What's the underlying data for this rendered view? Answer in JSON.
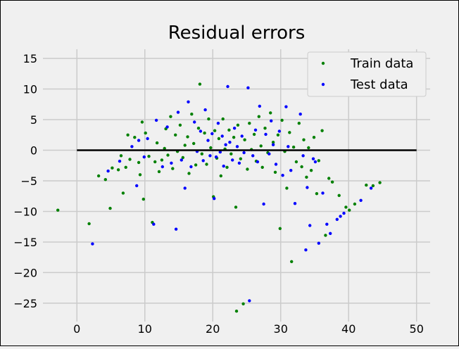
{
  "chart_data": {
    "type": "scatter",
    "title": "Residual errors",
    "xlabel": "",
    "ylabel": "",
    "xlim": [
      -5,
      52
    ],
    "ylim": [
      -28,
      16.5
    ],
    "xticks": [
      0,
      10,
      20,
      30,
      40,
      50
    ],
    "yticks": [
      -25,
      -20,
      -15,
      -10,
      -5,
      0,
      5,
      10,
      15
    ],
    "grid": true,
    "hline": {
      "y": 0,
      "xmin": 0,
      "xmax": 50,
      "color": "#000000"
    },
    "legend": {
      "position": "top-right",
      "entries": [
        "Train data",
        "Test data"
      ]
    },
    "series": [
      {
        "name": "Train data",
        "color": "#008000",
        "points": [
          [
            -2.8,
            -9.8
          ],
          [
            1.8,
            -12
          ],
          [
            3.2,
            -4.2
          ],
          [
            4.2,
            -4.8
          ],
          [
            4.9,
            -9.5
          ],
          [
            5.2,
            -2.9
          ],
          [
            6.1,
            -3.2
          ],
          [
            6.5,
            -0.9
          ],
          [
            6.8,
            -7
          ],
          [
            7.2,
            -2.8
          ],
          [
            7.5,
            2.5
          ],
          [
            7.8,
            -1.5
          ],
          [
            8.5,
            2.1
          ],
          [
            9.1,
            -2
          ],
          [
            9.3,
            -4
          ],
          [
            9.6,
            4.6
          ],
          [
            9.8,
            -8
          ],
          [
            10.1,
            2.8
          ],
          [
            10.6,
            -1
          ],
          [
            11.1,
            -11.8
          ],
          [
            11.5,
            -1.9
          ],
          [
            11.8,
            1.2
          ],
          [
            12.1,
            -3.5
          ],
          [
            12.5,
            -1.6
          ],
          [
            12.9,
            0.3
          ],
          [
            13.1,
            3.5
          ],
          [
            13.4,
            -0.8
          ],
          [
            13.8,
            5.5
          ],
          [
            14.1,
            -3
          ],
          [
            14.5,
            2.5
          ],
          [
            14.8,
            -0.2
          ],
          [
            15.2,
            4.1
          ],
          [
            15.6,
            -1.2
          ],
          [
            15.9,
            0.8
          ],
          [
            16.3,
            2.2
          ],
          [
            16.5,
            -3.8
          ],
          [
            16.9,
            5.9
          ],
          [
            17.2,
            1.1
          ],
          [
            17.5,
            -2.4
          ],
          [
            17.9,
            3.6
          ],
          [
            18.1,
            10.8
          ],
          [
            18.4,
            -0.6
          ],
          [
            18.8,
            2.8
          ],
          [
            19.1,
            -2.3
          ],
          [
            19.4,
            5.1
          ],
          [
            19.7,
            0.4
          ],
          [
            20.1,
            -7.6
          ],
          [
            20.3,
            3.2
          ],
          [
            20.6,
            -1.3
          ],
          [
            20.9,
            1.9
          ],
          [
            21.2,
            -4.2
          ],
          [
            21.5,
            5.1
          ],
          [
            21.8,
            0.2
          ],
          [
            22.1,
            -2.8
          ],
          [
            22.4,
            3.3
          ],
          [
            22.7,
            -0.6
          ],
          [
            23.1,
            2.1
          ],
          [
            23.4,
            -9.3
          ],
          [
            23.7,
            4.1
          ],
          [
            24.1,
            -1.4
          ],
          [
            23.5,
            -26.3
          ],
          [
            24.5,
            -25.1
          ],
          [
            24.7,
            1.7
          ],
          [
            25.1,
            -3.1
          ],
          [
            25.4,
            4.4
          ],
          [
            25.7,
            0.1
          ],
          [
            26.1,
            2.6
          ],
          [
            26.4,
            -1.8
          ],
          [
            26.8,
            5.5
          ],
          [
            27.1,
            0.7
          ],
          [
            27.3,
            -2.8
          ],
          [
            27.7,
            3.6
          ],
          [
            28.1,
            -0.4
          ],
          [
            28.5,
            6.1
          ],
          [
            28.9,
            1.3
          ],
          [
            29.2,
            -3.6
          ],
          [
            29.6,
            2.5
          ],
          [
            29.9,
            -12.8
          ],
          [
            30.2,
            4.9
          ],
          [
            30.6,
            -0.2
          ],
          [
            30.9,
            -6.2
          ],
          [
            31.3,
            2.9
          ],
          [
            31.6,
            -18.2
          ],
          [
            31.9,
            0.5
          ],
          [
            32.3,
            -1.9
          ],
          [
            32.7,
            4.4
          ],
          [
            33.1,
            -2.7
          ],
          [
            33.4,
            1.7
          ],
          [
            33.8,
            -4.4
          ],
          [
            34.1,
            0.4
          ],
          [
            34.5,
            -3.3
          ],
          [
            34.9,
            2.1
          ],
          [
            35.3,
            -7.1
          ],
          [
            35.6,
            -1.7
          ],
          [
            36.1,
            3.2
          ],
          [
            36.6,
            -13.9
          ],
          [
            37.1,
            -4.6
          ],
          [
            37.6,
            -5.2
          ],
          [
            38.6,
            -7.4
          ],
          [
            39.6,
            -9.3
          ],
          [
            40.1,
            -9.8
          ],
          [
            40.9,
            -8.8
          ],
          [
            42.6,
            -5.7
          ],
          [
            43.6,
            -5.8
          ],
          [
            44.6,
            -5.3
          ]
        ]
      },
      {
        "name": "Test data",
        "color": "#0000ff",
        "points": [
          [
            2.3,
            -15.3
          ],
          [
            4.6,
            -3.4
          ],
          [
            6.3,
            -1.8
          ],
          [
            8.1,
            0.6
          ],
          [
            8.8,
            -5.8
          ],
          [
            9.1,
            1.6
          ],
          [
            9.9,
            -1.1
          ],
          [
            10.4,
            1.9
          ],
          [
            11.3,
            -12.1
          ],
          [
            11.7,
            4.9
          ],
          [
            12.6,
            -2.7
          ],
          [
            13.3,
            3.8
          ],
          [
            13.9,
            -2.1
          ],
          [
            14.6,
            -12.9
          ],
          [
            14.9,
            6.2
          ],
          [
            15.4,
            -1.6
          ],
          [
            15.9,
            -6.2
          ],
          [
            16.4,
            7.9
          ],
          [
            16.8,
            -2.7
          ],
          [
            17.3,
            4.6
          ],
          [
            17.7,
            -0.2
          ],
          [
            18.2,
            3.1
          ],
          [
            18.6,
            -1.7
          ],
          [
            18.9,
            6.6
          ],
          [
            19.3,
            1.6
          ],
          [
            19.6,
            -0.9
          ],
          [
            19.9,
            2.7
          ],
          [
            20.2,
            -7.9
          ],
          [
            20.5,
            -1.1
          ],
          [
            20.8,
            4.4
          ],
          [
            21.1,
            -0.3
          ],
          [
            21.4,
            2.3
          ],
          [
            21.6,
            -2.6
          ],
          [
            21.9,
            0.9
          ],
          [
            22.2,
            10.4
          ],
          [
            22.5,
            1.3
          ],
          [
            22.9,
            -1.6
          ],
          [
            23.2,
            3.6
          ],
          [
            23.6,
            0.6
          ],
          [
            23.9,
            -2.1
          ],
          [
            24.3,
            2.3
          ],
          [
            24.6,
            -0.4
          ],
          [
            25.2,
            10.2
          ],
          [
            25.4,
            -24.6
          ],
          [
            25.9,
            -0.9
          ],
          [
            26.3,
            3.3
          ],
          [
            26.6,
            -1.9
          ],
          [
            26.9,
            7.2
          ],
          [
            27.5,
            -8.8
          ],
          [
            27.8,
            2.6
          ],
          [
            28.3,
            -0.6
          ],
          [
            28.6,
            4.8
          ],
          [
            28.9,
            0.9
          ],
          [
            29.3,
            -2.3
          ],
          [
            29.8,
            3.1
          ],
          [
            30.3,
            -4.1
          ],
          [
            30.8,
            7.1
          ],
          [
            31.1,
            0.6
          ],
          [
            31.5,
            -3.3
          ],
          [
            32.1,
            -8.7
          ],
          [
            32.9,
            5.9
          ],
          [
            33.3,
            -0.9
          ],
          [
            33.7,
            -16.3
          ],
          [
            33.9,
            -6.1
          ],
          [
            34.3,
            -12.3
          ],
          [
            34.8,
            -1.4
          ],
          [
            35.1,
            -1.9
          ],
          [
            35.6,
            -15.2
          ],
          [
            36.2,
            -7
          ],
          [
            36.8,
            -12.1
          ],
          [
            37.3,
            -13.6
          ],
          [
            38.3,
            -11.3
          ],
          [
            38.8,
            -10.8
          ],
          [
            39.3,
            -10.3
          ],
          [
            41.8,
            -8.2
          ],
          [
            43.3,
            -6.2
          ]
        ]
      }
    ]
  }
}
